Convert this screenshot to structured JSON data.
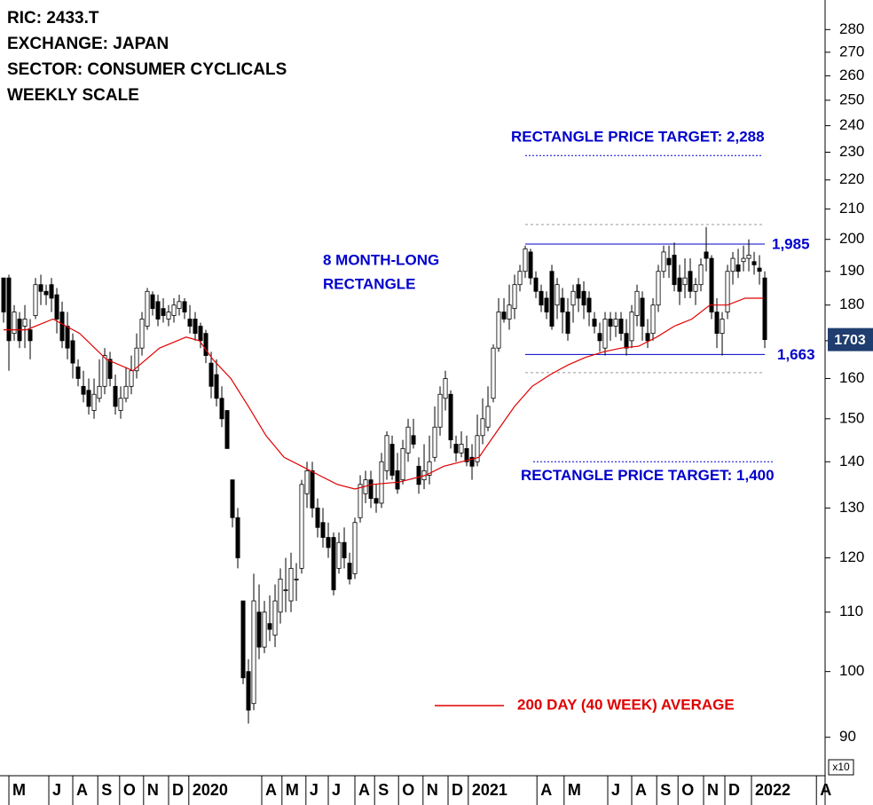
{
  "chart_data": {
    "type": "candlestick",
    "title_lines": [
      "RIC: 2433.T",
      "EXCHANGE: JAPAN",
      "SECTOR: CONSUMER CYCLICALS",
      "WEEKLY SCALE"
    ],
    "up_color": "#ffffff",
    "down_color": "#000000",
    "open": [
      188,
      188,
      172,
      176,
      174,
      173,
      177,
      186,
      184,
      186,
      183,
      178,
      174,
      170,
      163,
      158,
      157,
      152,
      155,
      158,
      165,
      158,
      152,
      155,
      158,
      162,
      168,
      174,
      183,
      181,
      179,
      176,
      177,
      179,
      181,
      176,
      176,
      174,
      172,
      164,
      161,
      155,
      152,
      136,
      128,
      112,
      100,
      95,
      110,
      104,
      108,
      106,
      110,
      114,
      112,
      116,
      118,
      133,
      138,
      130,
      127,
      124,
      124,
      118,
      123,
      119,
      117,
      128,
      133,
      136,
      132,
      131,
      138,
      144,
      138,
      136,
      142,
      146,
      139,
      136,
      137,
      141,
      148,
      155,
      156,
      144,
      142,
      143,
      141,
      140,
      146,
      148,
      155,
      168,
      178,
      176,
      179,
      186,
      190,
      196,
      188,
      184,
      182,
      190,
      180,
      182,
      178,
      180,
      186,
      184,
      182,
      176,
      172,
      168,
      176,
      174,
      176,
      172,
      170,
      177,
      182,
      172,
      172,
      180,
      190,
      194,
      195,
      188,
      186,
      190,
      184,
      186,
      196,
      194,
      178,
      172,
      178,
      190,
      192,
      193,
      194,
      193,
      191,
      188
    ],
    "high": [
      188,
      189,
      180,
      178,
      180,
      176,
      188,
      189,
      186,
      188,
      185,
      181,
      178,
      172,
      165,
      162,
      160,
      160,
      165,
      168,
      167,
      161,
      158,
      163,
      166,
      172,
      178,
      185,
      184,
      183,
      182,
      180,
      182,
      183,
      182,
      180,
      178,
      175,
      173,
      167,
      165,
      158,
      152,
      136,
      130,
      112,
      102,
      117,
      115,
      112,
      113,
      115,
      118,
      120,
      121,
      119,
      136,
      140,
      140,
      132,
      130,
      127,
      125,
      125,
      126,
      121,
      128,
      137,
      138,
      138,
      135,
      142,
      147,
      146,
      142,
      145,
      150,
      150,
      141,
      144,
      146,
      153,
      158,
      162,
      157,
      146,
      147,
      146,
      144,
      151,
      155,
      158,
      169,
      182,
      182,
      186,
      189,
      192,
      198,
      197,
      190,
      186,
      184,
      192,
      188,
      185,
      182,
      186,
      188,
      187,
      184,
      178,
      175,
      178,
      178,
      178,
      178,
      176,
      180,
      186,
      184,
      176,
      182,
      192,
      198,
      198,
      199,
      192,
      194,
      194,
      188,
      194,
      204,
      195,
      182,
      178,
      192,
      196,
      197,
      198,
      200,
      196,
      195,
      190
    ],
    "low": [
      175,
      162,
      170,
      168,
      168,
      165,
      176,
      180,
      180,
      178,
      172,
      168,
      165,
      160,
      158,
      154,
      151,
      150,
      154,
      156,
      158,
      151,
      150,
      154,
      156,
      160,
      166,
      173,
      177,
      174,
      175,
      174,
      175,
      177,
      176,
      172,
      170,
      168,
      164,
      155,
      153,
      148,
      143,
      126,
      118,
      98,
      92,
      94,
      102,
      103,
      105,
      104,
      108,
      110,
      110,
      112,
      117,
      130,
      128,
      124,
      122,
      120,
      113,
      117,
      118,
      115,
      116,
      127,
      131,
      130,
      129,
      130,
      136,
      136,
      133,
      135,
      140,
      143,
      133,
      134,
      135,
      140,
      146,
      152,
      143,
      140,
      141,
      139,
      136,
      139,
      144,
      147,
      154,
      167,
      175,
      173,
      176,
      184,
      188,
      186,
      182,
      178,
      176,
      173,
      176,
      172,
      170,
      175,
      178,
      176,
      174,
      172,
      167,
      166,
      170,
      171,
      170,
      166,
      168,
      174,
      170,
      168,
      170,
      178,
      188,
      188,
      184,
      180,
      182,
      182,
      180,
      184,
      190,
      176,
      168,
      166,
      176,
      186,
      188,
      190,
      190,
      189,
      186,
      168
    ],
    "close": [
      178,
      170,
      178,
      170,
      176,
      170,
      186,
      184,
      183,
      182,
      176,
      170,
      168,
      164,
      160,
      156,
      153,
      156,
      158,
      166,
      160,
      153,
      155,
      158,
      162,
      168,
      176,
      184,
      179,
      176,
      177,
      178,
      180,
      181,
      178,
      174,
      172,
      170,
      166,
      158,
      155,
      150,
      143,
      128,
      120,
      99,
      94,
      112,
      104,
      110,
      107,
      112,
      116,
      114,
      118,
      116,
      135,
      138,
      130,
      126,
      124,
      122,
      114,
      123,
      120,
      116,
      127,
      135,
      136,
      132,
      131,
      140,
      146,
      137,
      134,
      143,
      148,
      144,
      135,
      138,
      140,
      148,
      156,
      160,
      145,
      142,
      144,
      140,
      139,
      146,
      150,
      153,
      168,
      178,
      176,
      180,
      186,
      190,
      197,
      188,
      184,
      180,
      178,
      174,
      186,
      178,
      172,
      184,
      182,
      180,
      178,
      174,
      170,
      176,
      174,
      176,
      172,
      168,
      178,
      184,
      174,
      170,
      180,
      190,
      196,
      192,
      186,
      184,
      188,
      184,
      186,
      192,
      194,
      178,
      172,
      176,
      190,
      194,
      190,
      194,
      195,
      192,
      190,
      170.3
    ],
    "moving_average": {
      "name": "200 DAY (40 WEEK) AVERAGE",
      "color": "#e00000",
      "x": [
        0,
        4.3,
        9.3,
        14.3,
        19.3,
        24.3,
        29.3,
        34.3,
        36.8,
        39.3,
        42.7,
        46,
        49.3,
        52.7,
        56,
        59.3,
        62.7,
        66,
        69.3,
        74.3,
        79.3,
        82.7,
        86,
        89.3,
        92.7,
        96,
        99.3,
        102.7,
        106,
        109.3,
        112.7,
        116,
        119.3,
        122.7,
        126,
        129.3,
        132.7,
        136,
        139.3,
        142.7
      ],
      "values": [
        173,
        173,
        176,
        172,
        165,
        162,
        168,
        171,
        170,
        165,
        160,
        153,
        146,
        141,
        139,
        137,
        135,
        134,
        135,
        135.5,
        137,
        139,
        140,
        141,
        147,
        153,
        158,
        161,
        163.5,
        165.5,
        167,
        168,
        168.5,
        171,
        174,
        176,
        180,
        180,
        182,
        182
      ]
    },
    "rectangle_label": [
      "8 MONTH-LONG",
      "RECTANGLE"
    ],
    "rectangle_color": "#0000cc",
    "rectangle_levels": [
      {
        "value": 198.5,
        "label": "1,985"
      },
      {
        "value": 166.3,
        "label": "1,663"
      }
    ],
    "rectangle_bounds": [
      204.8,
      161.5
    ],
    "targets": [
      {
        "value": 228.8,
        "label": "RECTANGLE PRICE TARGET: 2,288"
      },
      {
        "value": 140,
        "label": "RECTANGLE PRICE TARGET: 1,400"
      }
    ],
    "last_price": {
      "value": 170.3,
      "label": "1703"
    },
    "y_multiplier": "x10",
    "log_scale": true,
    "ylim": [
      85.1,
      293.6
    ],
    "yticks": [
      90,
      100,
      110,
      120,
      130,
      140,
      150,
      160,
      170,
      180,
      190,
      200,
      210,
      220,
      230,
      240,
      250,
      260,
      270,
      280
    ],
    "ytick_hidden": [
      170
    ],
    "xlim": [
      -0.67,
      154.33
    ],
    "xticks": [
      {
        "value": 1.0,
        "label": "M"
      },
      {
        "value": 8.5,
        "label": "J"
      },
      {
        "value": 13.0,
        "label": "A"
      },
      {
        "value": 17.7,
        "label": "S"
      },
      {
        "value": 21.8,
        "label": "O"
      },
      {
        "value": 26.3,
        "label": "N"
      },
      {
        "value": 31.0,
        "label": "D"
      },
      {
        "value": 34.8,
        "label": "2020"
      },
      {
        "value": 48.5,
        "label": "A"
      },
      {
        "value": 52.3,
        "label": "M"
      },
      {
        "value": 56.8,
        "label": "J"
      },
      {
        "value": 61.0,
        "label": "J"
      },
      {
        "value": 66.0,
        "label": "A"
      },
      {
        "value": 69.7,
        "label": "S"
      },
      {
        "value": 74.2,
        "label": "O"
      },
      {
        "value": 78.8,
        "label": "N"
      },
      {
        "value": 83.5,
        "label": "D"
      },
      {
        "value": 87.3,
        "label": "2021"
      },
      {
        "value": 100.2,
        "label": "A"
      },
      {
        "value": 105.3,
        "label": "M"
      },
      {
        "value": 113.5,
        "label": "J"
      },
      {
        "value": 118.0,
        "label": "A"
      },
      {
        "value": 122.7,
        "label": "S"
      },
      {
        "value": 126.7,
        "label": "O"
      },
      {
        "value": 131.5,
        "label": "N"
      },
      {
        "value": 135.5,
        "label": "D"
      },
      {
        "value": 140.5,
        "label": "2022"
      },
      {
        "value": 152.7,
        "label": "A"
      }
    ]
  }
}
